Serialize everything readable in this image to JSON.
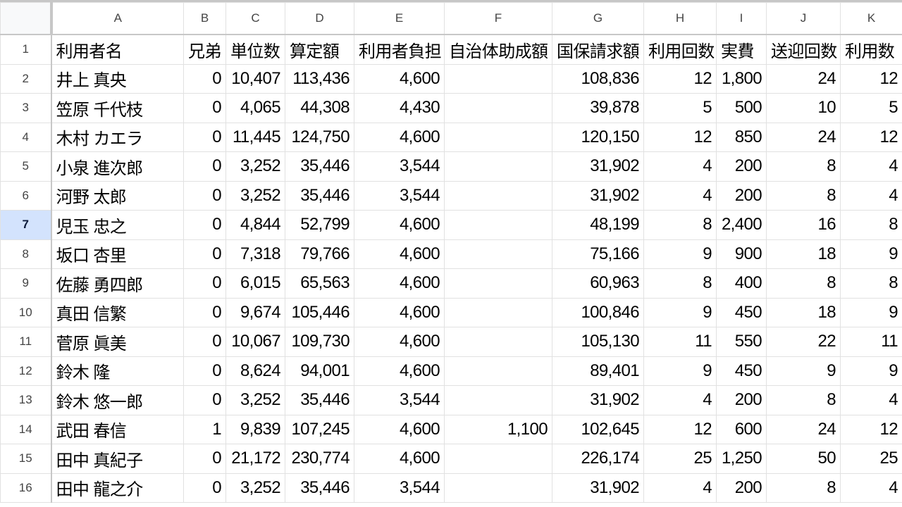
{
  "columns": [
    "A",
    "B",
    "C",
    "D",
    "E",
    "F",
    "G",
    "H",
    "I",
    "J",
    "K"
  ],
  "selected_row": 7,
  "selection_color": "#d3e3fd",
  "header_row": [
    "利用者名",
    "兄弟",
    "単位数",
    "算定額",
    "利用者負担",
    "自治体助成額",
    "国保請求額",
    "利用回数",
    "実費",
    "送迎回数",
    "利用数"
  ],
  "rows": [
    [
      "井上 真央",
      "0",
      "10,407",
      "113,436",
      "4,600",
      "",
      "108,836",
      "12",
      "1,800",
      "24",
      "12"
    ],
    [
      "笠原 千代枝",
      "0",
      "4,065",
      "44,308",
      "4,430",
      "",
      "39,878",
      "5",
      "500",
      "10",
      "5"
    ],
    [
      "木村 カエラ",
      "0",
      "11,445",
      "124,750",
      "4,600",
      "",
      "120,150",
      "12",
      "850",
      "24",
      "12"
    ],
    [
      "小泉 進次郎",
      "0",
      "3,252",
      "35,446",
      "3,544",
      "",
      "31,902",
      "4",
      "200",
      "8",
      "4"
    ],
    [
      "河野 太郎",
      "0",
      "3,252",
      "35,446",
      "3,544",
      "",
      "31,902",
      "4",
      "200",
      "8",
      "4"
    ],
    [
      "児玉 忠之",
      "0",
      "4,844",
      "52,799",
      "4,600",
      "",
      "48,199",
      "8",
      "2,400",
      "16",
      "8"
    ],
    [
      "坂口 杏里",
      "0",
      "7,318",
      "79,766",
      "4,600",
      "",
      "75,166",
      "9",
      "900",
      "18",
      "9"
    ],
    [
      "佐藤 勇四郎",
      "0",
      "6,015",
      "65,563",
      "4,600",
      "",
      "60,963",
      "8",
      "400",
      "8",
      "8"
    ],
    [
      "真田 信繁",
      "0",
      "9,674",
      "105,446",
      "4,600",
      "",
      "100,846",
      "9",
      "450",
      "18",
      "9"
    ],
    [
      "菅原 眞美",
      "0",
      "10,067",
      "109,730",
      "4,600",
      "",
      "105,130",
      "11",
      "550",
      "22",
      "11"
    ],
    [
      "鈴木 隆",
      "0",
      "8,624",
      "94,001",
      "4,600",
      "",
      "89,401",
      "9",
      "450",
      "9",
      "9"
    ],
    [
      "鈴木 悠一郎",
      "0",
      "3,252",
      "35,446",
      "3,544",
      "",
      "31,902",
      "4",
      "200",
      "8",
      "4"
    ],
    [
      "武田 春信",
      "1",
      "9,839",
      "107,245",
      "4,600",
      "1,100",
      "102,645",
      "12",
      "600",
      "24",
      "12"
    ],
    [
      "田中 真紀子",
      "0",
      "21,172",
      "230,774",
      "4,600",
      "",
      "226,174",
      "25",
      "1,250",
      "50",
      "25"
    ],
    [
      "田中 龍之介",
      "0",
      "3,252",
      "35,446",
      "3,544",
      "",
      "31,902",
      "4",
      "200",
      "8",
      "4"
    ]
  ]
}
